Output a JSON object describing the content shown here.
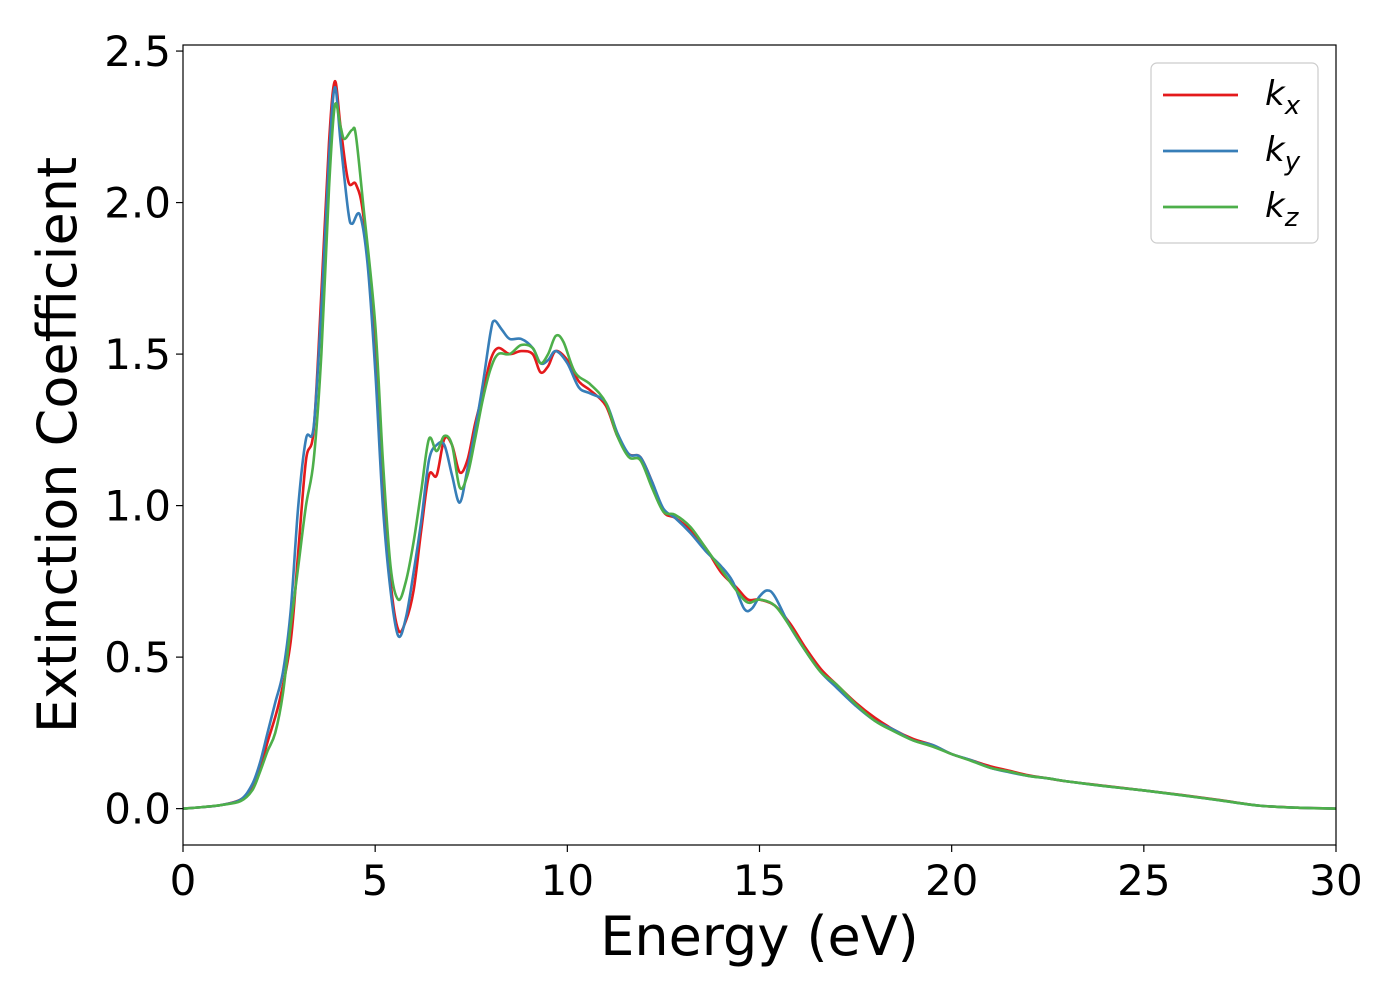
{
  "chart_data": {
    "type": "line",
    "title": "",
    "xlabel": "Energy (eV)",
    "ylabel": "Extinction Coefficient",
    "xlim": [
      0,
      30
    ],
    "ylim": [
      -0.12,
      2.52
    ],
    "xticks": [
      0,
      5,
      10,
      15,
      20,
      25,
      30
    ],
    "xtick_labels": [
      "0",
      "5",
      "10",
      "15",
      "20",
      "25",
      "30"
    ],
    "yticks": [
      0.0,
      0.5,
      1.0,
      1.5,
      2.0,
      2.5
    ],
    "ytick_labels": [
      "0.0",
      "0.5",
      "1.0",
      "1.5",
      "2.0",
      "2.5"
    ],
    "grid": false,
    "legend_position": "top-right",
    "series": [
      {
        "name": "k",
        "subscript": "x",
        "color": "#e41a1c",
        "points": [
          [
            0,
            0
          ],
          [
            0.5,
            0.005
          ],
          [
            1,
            0.012
          ],
          [
            1.5,
            0.03
          ],
          [
            1.8,
            0.07
          ],
          [
            2.0,
            0.13
          ],
          [
            2.2,
            0.22
          ],
          [
            2.5,
            0.35
          ],
          [
            2.8,
            0.55
          ],
          [
            3.0,
            0.85
          ],
          [
            3.2,
            1.15
          ],
          [
            3.4,
            1.25
          ],
          [
            3.6,
            1.7
          ],
          [
            3.8,
            2.2
          ],
          [
            3.95,
            2.4
          ],
          [
            4.1,
            2.25
          ],
          [
            4.3,
            2.07
          ],
          [
            4.5,
            2.06
          ],
          [
            4.7,
            1.95
          ],
          [
            5.0,
            1.55
          ],
          [
            5.2,
            1.1
          ],
          [
            5.4,
            0.75
          ],
          [
            5.6,
            0.59
          ],
          [
            5.8,
            0.62
          ],
          [
            6.0,
            0.72
          ],
          [
            6.2,
            0.92
          ],
          [
            6.4,
            1.1
          ],
          [
            6.6,
            1.1
          ],
          [
            6.8,
            1.22
          ],
          [
            7.0,
            1.2
          ],
          [
            7.2,
            1.11
          ],
          [
            7.4,
            1.15
          ],
          [
            7.6,
            1.27
          ],
          [
            7.8,
            1.37
          ],
          [
            8.0,
            1.48
          ],
          [
            8.2,
            1.52
          ],
          [
            8.5,
            1.5
          ],
          [
            8.8,
            1.51
          ],
          [
            9.1,
            1.5
          ],
          [
            9.3,
            1.44
          ],
          [
            9.5,
            1.46
          ],
          [
            9.7,
            1.51
          ],
          [
            10.0,
            1.48
          ],
          [
            10.3,
            1.41
          ],
          [
            10.6,
            1.38
          ],
          [
            11.0,
            1.33
          ],
          [
            11.3,
            1.23
          ],
          [
            11.6,
            1.17
          ],
          [
            11.9,
            1.16
          ],
          [
            12.2,
            1.08
          ],
          [
            12.5,
            0.98
          ],
          [
            12.8,
            0.96
          ],
          [
            13.2,
            0.92
          ],
          [
            13.6,
            0.86
          ],
          [
            14.0,
            0.78
          ],
          [
            14.4,
            0.73
          ],
          [
            14.7,
            0.69
          ],
          [
            15.0,
            0.69
          ],
          [
            15.4,
            0.67
          ],
          [
            15.8,
            0.61
          ],
          [
            16.2,
            0.53
          ],
          [
            16.6,
            0.46
          ],
          [
            17.0,
            0.41
          ],
          [
            17.5,
            0.35
          ],
          [
            18.0,
            0.3
          ],
          [
            18.5,
            0.26
          ],
          [
            19.0,
            0.23
          ],
          [
            19.5,
            0.21
          ],
          [
            20.0,
            0.18
          ],
          [
            20.5,
            0.16
          ],
          [
            21.0,
            0.14
          ],
          [
            21.5,
            0.125
          ],
          [
            22.0,
            0.11
          ],
          [
            22.5,
            0.1
          ],
          [
            23.0,
            0.09
          ],
          [
            24.0,
            0.075
          ],
          [
            25.0,
            0.06
          ],
          [
            26.0,
            0.045
          ],
          [
            27.0,
            0.028
          ],
          [
            28.0,
            0.01
          ],
          [
            29.0,
            0.003
          ],
          [
            30.0,
            0.0
          ]
        ]
      },
      {
        "name": "k",
        "subscript": "y",
        "color": "#377eb8",
        "points": [
          [
            0,
            0
          ],
          [
            0.5,
            0.005
          ],
          [
            1,
            0.012
          ],
          [
            1.5,
            0.03
          ],
          [
            1.8,
            0.08
          ],
          [
            2.0,
            0.15
          ],
          [
            2.2,
            0.25
          ],
          [
            2.4,
            0.35
          ],
          [
            2.6,
            0.45
          ],
          [
            2.8,
            0.65
          ],
          [
            3.0,
            1.0
          ],
          [
            3.2,
            1.22
          ],
          [
            3.4,
            1.26
          ],
          [
            3.6,
            1.65
          ],
          [
            3.8,
            2.15
          ],
          [
            3.95,
            2.38
          ],
          [
            4.1,
            2.2
          ],
          [
            4.3,
            1.97
          ],
          [
            4.4,
            1.93
          ],
          [
            4.6,
            1.96
          ],
          [
            4.8,
            1.8
          ],
          [
            5.0,
            1.45
          ],
          [
            5.2,
            1.0
          ],
          [
            5.4,
            0.72
          ],
          [
            5.6,
            0.57
          ],
          [
            5.8,
            0.63
          ],
          [
            6.0,
            0.78
          ],
          [
            6.2,
            0.95
          ],
          [
            6.4,
            1.15
          ],
          [
            6.6,
            1.2
          ],
          [
            6.8,
            1.2
          ],
          [
            7.0,
            1.1
          ],
          [
            7.2,
            1.01
          ],
          [
            7.4,
            1.12
          ],
          [
            7.6,
            1.25
          ],
          [
            7.8,
            1.4
          ],
          [
            8.0,
            1.57
          ],
          [
            8.1,
            1.61
          ],
          [
            8.3,
            1.58
          ],
          [
            8.5,
            1.55
          ],
          [
            8.8,
            1.55
          ],
          [
            9.1,
            1.52
          ],
          [
            9.3,
            1.47
          ],
          [
            9.5,
            1.48
          ],
          [
            9.7,
            1.51
          ],
          [
            10.0,
            1.47
          ],
          [
            10.3,
            1.39
          ],
          [
            10.6,
            1.37
          ],
          [
            11.0,
            1.34
          ],
          [
            11.3,
            1.24
          ],
          [
            11.6,
            1.17
          ],
          [
            11.9,
            1.16
          ],
          [
            12.2,
            1.08
          ],
          [
            12.5,
            0.99
          ],
          [
            12.8,
            0.96
          ],
          [
            13.2,
            0.91
          ],
          [
            13.6,
            0.85
          ],
          [
            14.0,
            0.8
          ],
          [
            14.3,
            0.75
          ],
          [
            14.6,
            0.66
          ],
          [
            14.8,
            0.66
          ],
          [
            15.0,
            0.7
          ],
          [
            15.2,
            0.72
          ],
          [
            15.4,
            0.7
          ],
          [
            15.8,
            0.6
          ],
          [
            16.2,
            0.52
          ],
          [
            16.6,
            0.45
          ],
          [
            17.0,
            0.4
          ],
          [
            17.5,
            0.34
          ],
          [
            18.0,
            0.29
          ],
          [
            18.5,
            0.26
          ],
          [
            19.0,
            0.225
          ],
          [
            19.5,
            0.21
          ],
          [
            20.0,
            0.18
          ],
          [
            20.5,
            0.16
          ],
          [
            21.0,
            0.135
          ],
          [
            21.5,
            0.12
          ],
          [
            22.0,
            0.108
          ],
          [
            22.5,
            0.1
          ],
          [
            23.0,
            0.09
          ],
          [
            24.0,
            0.074
          ],
          [
            25.0,
            0.06
          ],
          [
            26.0,
            0.044
          ],
          [
            27.0,
            0.027
          ],
          [
            28.0,
            0.01
          ],
          [
            29.0,
            0.003
          ],
          [
            30.0,
            0.0
          ]
        ]
      },
      {
        "name": "k",
        "subscript": "z",
        "color": "#4daf4a",
        "points": [
          [
            0,
            0
          ],
          [
            0.5,
            0.005
          ],
          [
            1,
            0.012
          ],
          [
            1.5,
            0.025
          ],
          [
            1.8,
            0.06
          ],
          [
            2.0,
            0.12
          ],
          [
            2.2,
            0.19
          ],
          [
            2.4,
            0.25
          ],
          [
            2.6,
            0.38
          ],
          [
            2.8,
            0.6
          ],
          [
            3.0,
            0.8
          ],
          [
            3.2,
            1.0
          ],
          [
            3.4,
            1.15
          ],
          [
            3.6,
            1.5
          ],
          [
            3.8,
            2.05
          ],
          [
            3.95,
            2.32
          ],
          [
            4.1,
            2.25
          ],
          [
            4.2,
            2.21
          ],
          [
            4.4,
            2.24
          ],
          [
            4.5,
            2.22
          ],
          [
            4.7,
            1.98
          ],
          [
            5.0,
            1.6
          ],
          [
            5.2,
            1.15
          ],
          [
            5.4,
            0.8
          ],
          [
            5.6,
            0.69
          ],
          [
            5.8,
            0.75
          ],
          [
            6.0,
            0.88
          ],
          [
            6.2,
            1.05
          ],
          [
            6.4,
            1.22
          ],
          [
            6.6,
            1.18
          ],
          [
            6.8,
            1.23
          ],
          [
            7.0,
            1.2
          ],
          [
            7.2,
            1.06
          ],
          [
            7.4,
            1.1
          ],
          [
            7.6,
            1.22
          ],
          [
            7.8,
            1.35
          ],
          [
            8.0,
            1.45
          ],
          [
            8.2,
            1.5
          ],
          [
            8.5,
            1.5
          ],
          [
            8.8,
            1.53
          ],
          [
            9.1,
            1.52
          ],
          [
            9.3,
            1.47
          ],
          [
            9.5,
            1.5
          ],
          [
            9.7,
            1.56
          ],
          [
            9.9,
            1.54
          ],
          [
            10.2,
            1.44
          ],
          [
            10.6,
            1.4
          ],
          [
            11.0,
            1.34
          ],
          [
            11.3,
            1.23
          ],
          [
            11.6,
            1.16
          ],
          [
            11.9,
            1.15
          ],
          [
            12.2,
            1.06
          ],
          [
            12.5,
            0.98
          ],
          [
            12.8,
            0.97
          ],
          [
            13.2,
            0.93
          ],
          [
            13.6,
            0.86
          ],
          [
            14.0,
            0.79
          ],
          [
            14.4,
            0.72
          ],
          [
            14.7,
            0.68
          ],
          [
            15.0,
            0.69
          ],
          [
            15.4,
            0.67
          ],
          [
            15.8,
            0.6
          ],
          [
            16.2,
            0.52
          ],
          [
            16.6,
            0.45
          ],
          [
            17.0,
            0.41
          ],
          [
            17.5,
            0.345
          ],
          [
            18.0,
            0.29
          ],
          [
            18.5,
            0.255
          ],
          [
            19.0,
            0.225
          ],
          [
            19.5,
            0.205
          ],
          [
            20.0,
            0.18
          ],
          [
            20.5,
            0.158
          ],
          [
            21.0,
            0.135
          ],
          [
            21.5,
            0.122
          ],
          [
            22.0,
            0.108
          ],
          [
            22.5,
            0.1
          ],
          [
            23.0,
            0.09
          ],
          [
            24.0,
            0.074
          ],
          [
            25.0,
            0.06
          ],
          [
            26.0,
            0.044
          ],
          [
            27.0,
            0.027
          ],
          [
            28.0,
            0.01
          ],
          [
            29.0,
            0.003
          ],
          [
            30.0,
            0.0
          ]
        ]
      }
    ]
  }
}
